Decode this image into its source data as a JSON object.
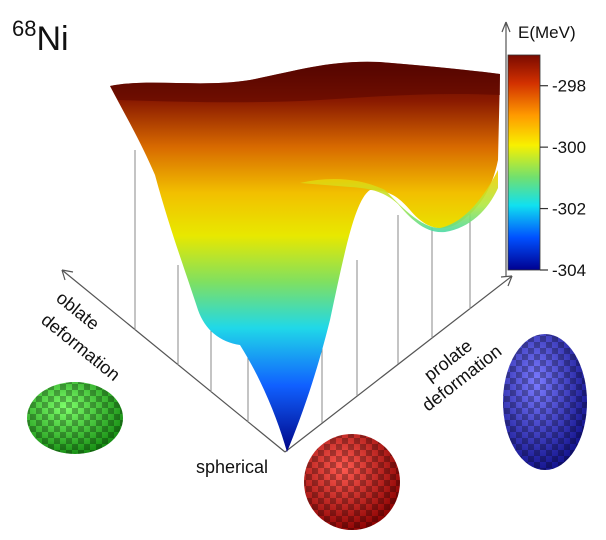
{
  "chart_data": {
    "type": "surface",
    "title_superscript": "68",
    "title": "Ni",
    "oblate_label": [
      "oblate",
      "deformation"
    ],
    "prolate_label": [
      "prolate",
      "deformation"
    ],
    "origin_label": "spherical",
    "colorbar": {
      "label": "E(MeV)",
      "lim": [
        -304,
        -297
      ],
      "ticks": [
        -298,
        -300,
        -302,
        -304
      ]
    }
  }
}
